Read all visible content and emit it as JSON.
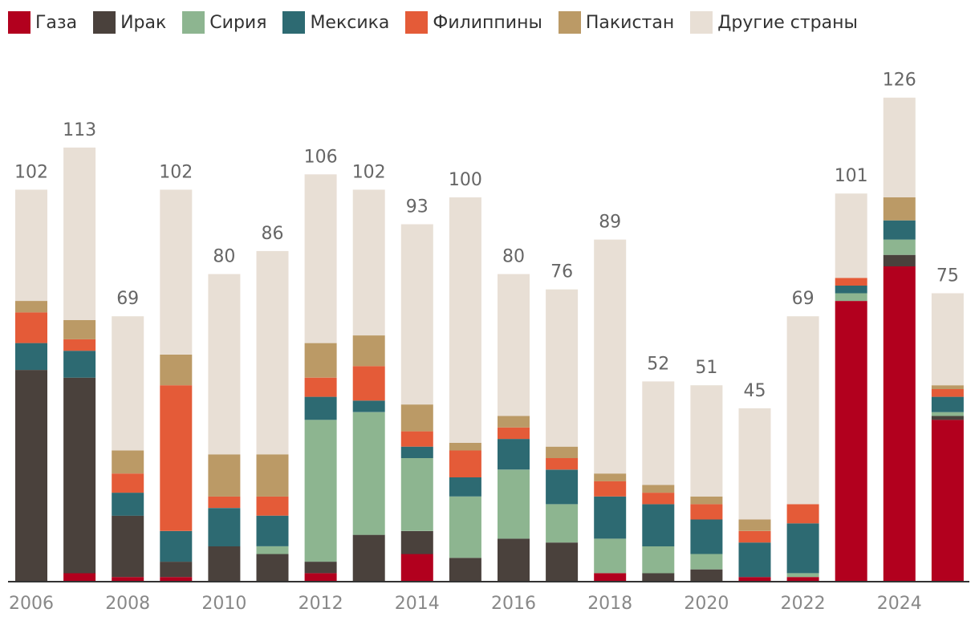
{
  "chart_data": {
    "type": "bar",
    "stacked": true,
    "legend_position": "top-left",
    "grid": false,
    "ylim": [
      0,
      130
    ],
    "x": [
      2006,
      2007,
      2008,
      2009,
      2010,
      2011,
      2012,
      2013,
      2014,
      2015,
      2016,
      2017,
      2018,
      2019,
      2020,
      2021,
      2022,
      2023,
      2024,
      2025
    ],
    "x_tick_labels": [
      "2006",
      "2008",
      "2010",
      "2012",
      "2014",
      "2016",
      "2018",
      "2020",
      "2022",
      "2024"
    ],
    "totals": [
      102,
      113,
      69,
      102,
      80,
      86,
      106,
      102,
      93,
      100,
      80,
      76,
      89,
      52,
      51,
      45,
      69,
      101,
      126,
      75
    ],
    "series": [
      {
        "name": "Газа",
        "color": "#b2001e",
        "values": [
          0,
          2,
          1,
          1,
          0,
          0,
          2,
          0,
          7,
          0,
          0,
          0,
          2,
          0,
          0,
          1,
          1,
          73,
          82,
          42
        ]
      },
      {
        "name": "Ирак",
        "color": "#4a413c",
        "values": [
          55,
          51,
          16,
          4,
          9,
          7,
          3,
          12,
          6,
          6,
          11,
          10,
          0,
          2,
          3,
          0,
          0,
          0,
          3,
          1
        ]
      },
      {
        "name": "Сирия",
        "color": "#8db590",
        "values": [
          0,
          0,
          0,
          0,
          0,
          2,
          37,
          32,
          19,
          16,
          18,
          10,
          9,
          7,
          4,
          0,
          1,
          2,
          4,
          1
        ]
      },
      {
        "name": "Мексика",
        "color": "#2d6a72",
        "values": [
          7,
          7,
          6,
          8,
          10,
          8,
          6,
          3,
          3,
          5,
          8,
          9,
          11,
          11,
          9,
          9,
          13,
          2,
          5,
          4
        ]
      },
      {
        "name": "Филиппины",
        "color": "#e45b38",
        "values": [
          8,
          3,
          5,
          38,
          3,
          5,
          5,
          9,
          4,
          7,
          3,
          3,
          4,
          3,
          4,
          3,
          5,
          2,
          0,
          2
        ]
      },
      {
        "name": "Пакистан",
        "color": "#bb9a66",
        "values": [
          3,
          5,
          6,
          8,
          11,
          11,
          9,
          8,
          7,
          2,
          3,
          3,
          2,
          2,
          2,
          3,
          0,
          0,
          6,
          1
        ]
      },
      {
        "name": "Другие страны",
        "color": "#e8dfd5",
        "values": [
          29,
          45,
          35,
          43,
          47,
          53,
          44,
          38,
          47,
          64,
          37,
          41,
          61,
          27,
          29,
          29,
          49,
          22,
          26,
          24
        ]
      }
    ]
  }
}
